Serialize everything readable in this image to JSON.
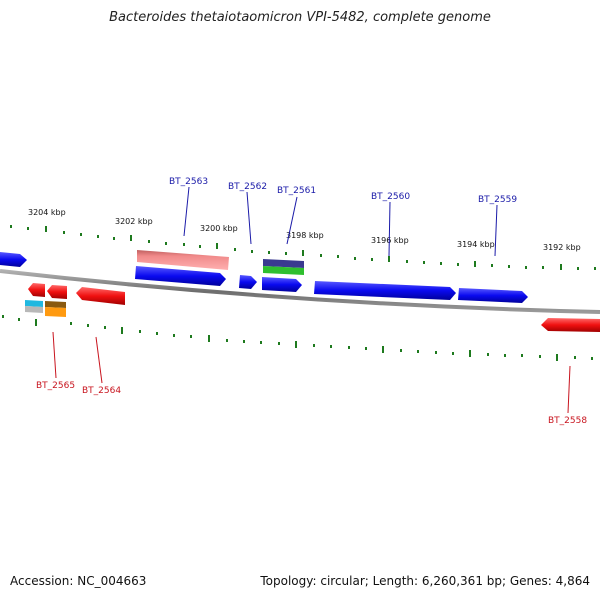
{
  "title": "Bacteroides thetaiotaomicron VPI-5482, complete genome",
  "footer": {
    "accession": "Accession: NC_004663",
    "summary": "Topology: circular; Length: 6,260,361 bp; Genes: 4,864"
  },
  "scale_labels": {
    "k3204": "3204 kbp",
    "k3202": "3202 kbp",
    "k3200": "3200 kbp",
    "k3198": "3198 kbp",
    "k3196": "3196 kbp",
    "k3194": "3194 kbp",
    "k3192": "3192 kbp"
  },
  "genes_top": {
    "g2563": "BT_2563",
    "g2562": "BT_2562",
    "g2561": "BT_2561",
    "g2560": "BT_2560",
    "g2559": "BT_2559"
  },
  "genes_bottom": {
    "g2565": "BT_2565",
    "g2564": "BT_2564",
    "g2558": "BT_2558"
  },
  "colors": {
    "forward": "#0a0af0",
    "reverse": "#f01010",
    "tick": "#1e7a1e",
    "backbone": "#808080",
    "label_top": "#1a1aa8",
    "label_bottom": "#c8141e"
  }
}
